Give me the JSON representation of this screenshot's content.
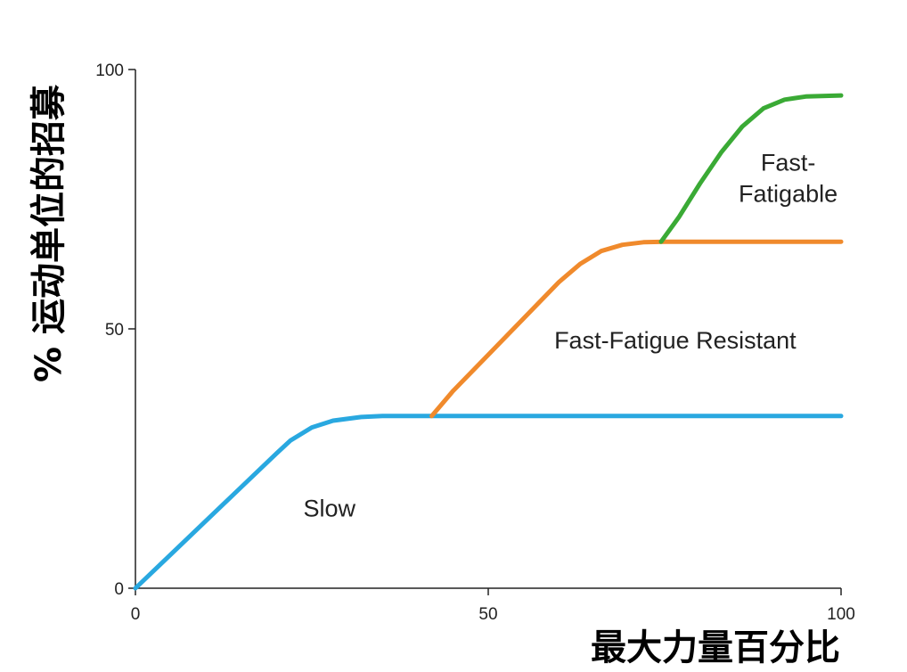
{
  "chart_data": {
    "type": "line",
    "xlabel": "最大力量百分比",
    "ylabel": "% 运动单位的招募",
    "xlim": [
      0,
      100
    ],
    "ylim": [
      0,
      100
    ],
    "xticks": [
      0,
      50,
      100
    ],
    "yticks": [
      0,
      50,
      100
    ],
    "grid": false,
    "series": [
      {
        "name": "Slow",
        "color": "#29a8e0",
        "x": [
          0,
          5,
          10,
          15,
          20,
          22,
          25,
          28,
          32,
          35,
          40,
          50,
          60,
          70,
          80,
          90,
          100
        ],
        "y": [
          0,
          6.5,
          13,
          19.5,
          26,
          28.5,
          31,
          32.3,
          33,
          33.2,
          33.2,
          33.2,
          33.2,
          33.2,
          33.2,
          33.2,
          33.2
        ]
      },
      {
        "name": "Fast-Fatigue Resistant",
        "color": "#f08a2c",
        "x": [
          42,
          45,
          50,
          55,
          60,
          63,
          66,
          69,
          72,
          75,
          80,
          90,
          100
        ],
        "y": [
          33.2,
          38,
          45,
          52,
          59,
          62.5,
          65,
          66.2,
          66.7,
          66.8,
          66.8,
          66.8,
          66.8
        ]
      },
      {
        "name": "Fast-Fatigable",
        "color": "#3aaa35",
        "x": [
          74.5,
          77,
          80,
          83,
          86,
          89,
          92,
          95,
          100
        ],
        "y": [
          66.8,
          71.5,
          78,
          84,
          89,
          92.5,
          94.2,
          94.8,
          95
        ]
      }
    ],
    "annotations": [
      {
        "text": "Slow",
        "x": 27.5,
        "y": 13.8
      },
      {
        "text": "Fast-Fatigue Resistant",
        "x": 76.5,
        "y": 46.2
      },
      {
        "text": "Fast-",
        "x": 92.5,
        "y": 80.5
      },
      {
        "text": "Fatigable",
        "x": 92.5,
        "y": 74.5
      }
    ]
  }
}
